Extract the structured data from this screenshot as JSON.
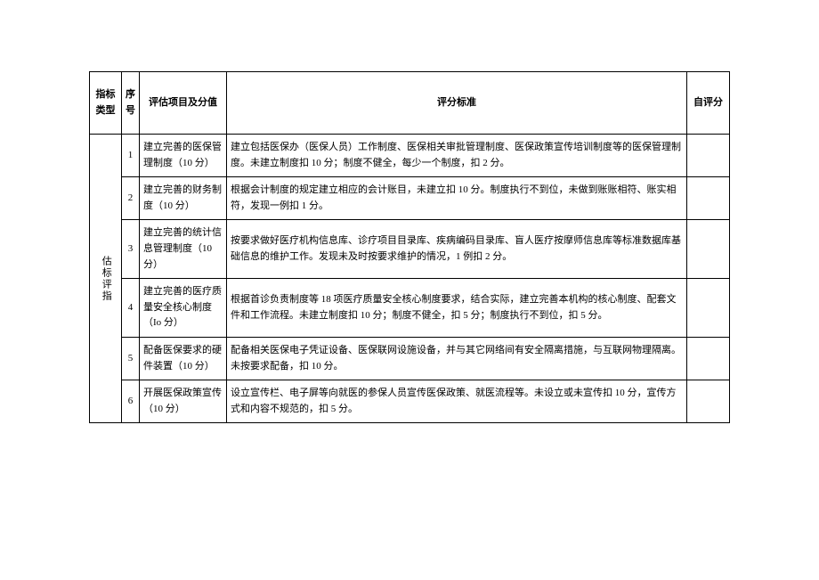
{
  "headers": {
    "type": "指标类型",
    "seq": "序",
    "seq_bold": "号",
    "item": "评估项目及分值",
    "standard": "评分标准",
    "self": "自评分"
  },
  "category_label": "估标评指",
  "rows": [
    {
      "seq": "1",
      "item": "建立完善的医保管理制度（10 分）",
      "standard": "建立包括医保办（医保人员）工作制度、医保相关审批管理制度、医保政策宣传培训制度等的医保管理制度。未建立制度扣 10 分；制度不健全，每少一个制度，扣 2 分。",
      "self": ""
    },
    {
      "seq": "2",
      "item": "建立完善的财务制度（10 分）",
      "standard": "根据会计制度的规定建立相应的会计账目，未建立扣 10 分。制度执行不到位，未做到账账相符、账实相符，发现一例扣 1 分。",
      "self": ""
    },
    {
      "seq": "3",
      "item": "建立完善的统计信息管理制度（10 分）",
      "standard": "按要求做好医疗机构信息库、诊疗项目目录库、疾病编码目录库、盲人医疗按摩师信息库等标准数据库基础信息的维护工作。发现未及时按要求维护的情况，1 例扣 2 分。",
      "self": ""
    },
    {
      "seq": "4",
      "item": "建立完善的医疗质量安全核心制度（Io 分）",
      "standard": "根据首诊负责制度等 18 项医疗质量安全核心制度要求，结合实际，建立完善本机构的核心制度、配套文件和工作流程。未建立制度扣 10 分；制度不健全，扣 5 分；制度执行不到位，扣 5 分。",
      "self": ""
    },
    {
      "seq": "5",
      "item": "配备医保要求的硬件装置（10 分）",
      "standard": "配备相关医保电子凭证设备、医保联网设施设备，并与其它网络间有安全隔离措施，与互联网物理隔离。未按要求配备，扣 10 分。",
      "self": ""
    },
    {
      "seq": "6",
      "item": "开展医保政策宣传（10 分）",
      "standard": "设立宣传栏、电子屏等向就医的参保人员宣传医保政策、就医流程等。未设立或未宣传扣 10 分，宣传方式和内容不规范的，扣 5 分。",
      "self": ""
    }
  ]
}
